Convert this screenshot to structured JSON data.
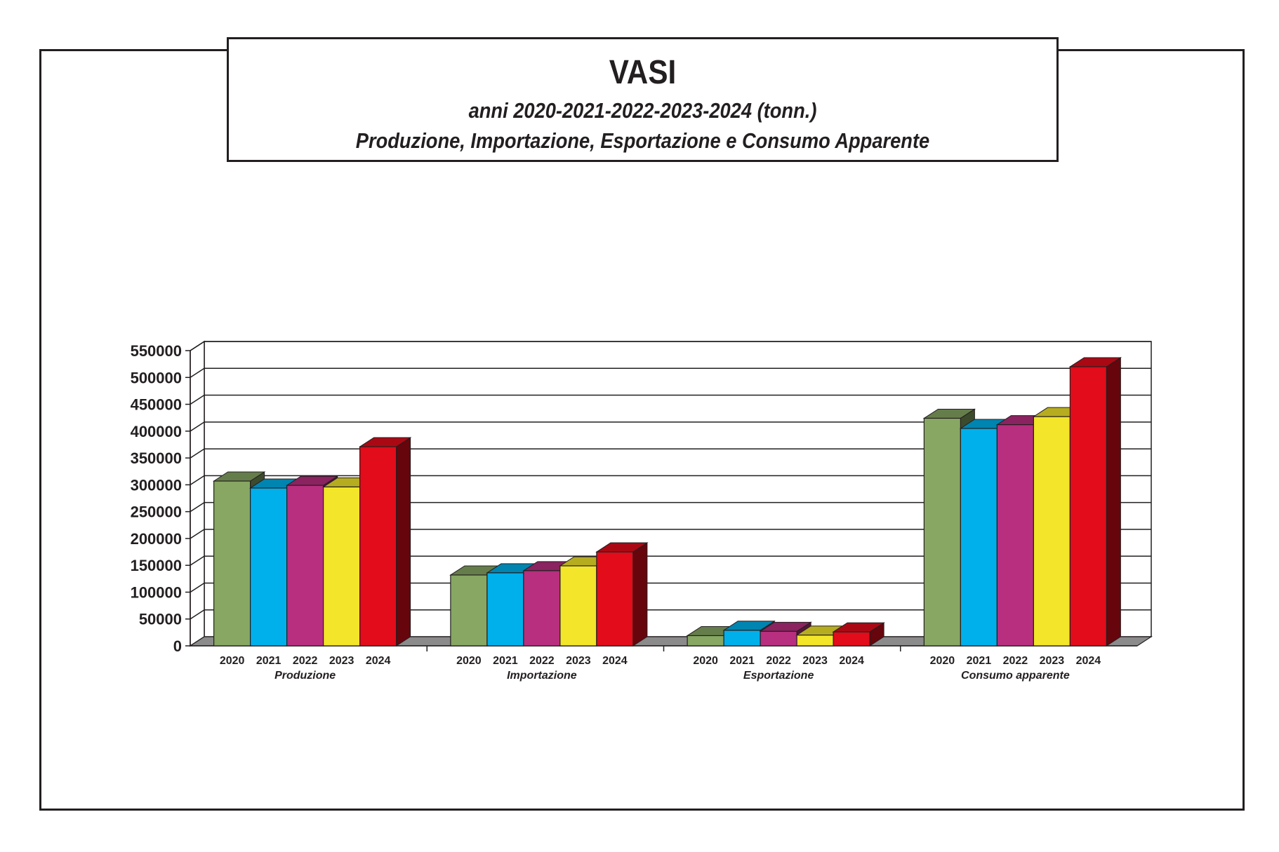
{
  "header": {
    "title": "VASI",
    "subtitle_1": "anni 2020-2021-2022-2023-2024 (tonn.)",
    "subtitle_2": "Produzione, Importazione, Esportazione e Consumo Apparente"
  },
  "chart_data": {
    "type": "bar",
    "style": "3d-clustered",
    "categories": [
      "Produzione",
      "Importazione",
      "Esportazione",
      "Consumo apparente"
    ],
    "series": [
      {
        "name": "2020",
        "color": "#87a763",
        "values": [
          307000,
          132000,
          19000,
          424000
        ]
      },
      {
        "name": "2021",
        "color": "#00b0eb",
        "values": [
          294000,
          136000,
          29000,
          405000
        ]
      },
      {
        "name": "2022",
        "color": "#b82f7f",
        "values": [
          299000,
          140000,
          27000,
          412000
        ]
      },
      {
        "name": "2023",
        "color": "#f2e52a",
        "values": [
          296000,
          149000,
          20000,
          427000
        ]
      },
      {
        "name": "2024",
        "color": "#e20c1a",
        "values": [
          371000,
          175000,
          26000,
          520000
        ]
      }
    ],
    "ylim": [
      0,
      550000
    ],
    "yticks": [
      "0",
      "50000",
      "100000",
      "150000",
      "200000",
      "250000",
      "300000",
      "350000",
      "400000",
      "450000",
      "500000",
      "550000"
    ],
    "grid": true,
    "floor_color": "#8c8b8b"
  }
}
